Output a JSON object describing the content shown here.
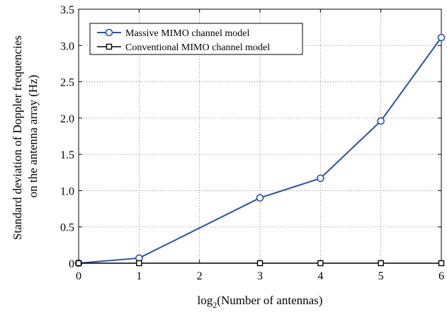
{
  "chart_data": {
    "type": "line",
    "title": "",
    "xlabel": "log",
    "xlabel_sub": "2",
    "xlabel_rest": "(Number of antennas)",
    "ylabel_line1": "Standard deviation of Doppler frequencies",
    "ylabel_line2": "on the antenna array (Hz)",
    "xlim": [
      0,
      6
    ],
    "ylim": [
      0,
      3.5
    ],
    "xticks": [
      0,
      1,
      2,
      3,
      4,
      5,
      6
    ],
    "xtick_labels": [
      "0",
      "1",
      "2",
      "3",
      "4",
      "5",
      "6"
    ],
    "yticks": [
      0,
      0.5,
      1.0,
      1.5,
      2.0,
      2.5,
      3.0,
      3.5
    ],
    "ytick_labels": [
      "0",
      "0.5",
      "1.0",
      "1.5",
      "2.0",
      "2.5",
      "3.0",
      "3.5"
    ],
    "grid": true,
    "legend_position": "top-left",
    "series": [
      {
        "name": "Massive MIMO channel model",
        "marker": "circle",
        "color": "#2a52a5",
        "x": [
          0,
          1,
          3,
          4,
          5,
          6
        ],
        "y": [
          0,
          0.07,
          0.9,
          1.17,
          1.96,
          3.11
        ]
      },
      {
        "name": "Conventional MIMO channel model",
        "marker": "square",
        "color": "#000000",
        "x": [
          0,
          1,
          3,
          4,
          5,
          6
        ],
        "y": [
          0,
          0,
          0,
          0,
          0,
          0
        ]
      }
    ]
  }
}
